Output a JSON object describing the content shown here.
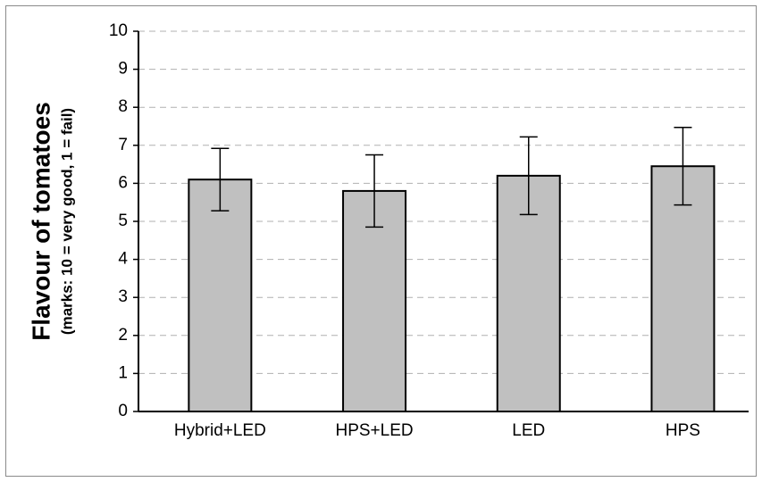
{
  "chart_data": {
    "type": "bar",
    "ylabel": "Flavour of tomatoes",
    "ylabel_note": "(marks: 10 = very good, 1 = fail)",
    "categories": [
      "Hybrid+LED",
      "HPS+LED",
      "LED",
      "HPS"
    ],
    "values": [
      6.1,
      5.8,
      6.2,
      6.45
    ],
    "errors": [
      0.82,
      0.95,
      1.02,
      1.02
    ],
    "color": "#c0c0c0",
    "ylim": [
      0,
      10
    ],
    "yticks": [
      0,
      1,
      2,
      3,
      4,
      5,
      6,
      7,
      8,
      9,
      10
    ],
    "grid": true
  }
}
